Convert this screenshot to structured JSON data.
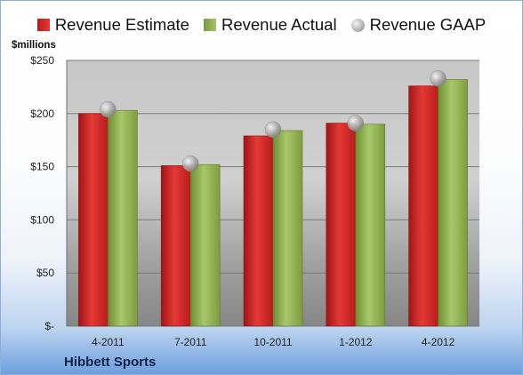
{
  "chart_data": {
    "type": "bar",
    "categories": [
      "4-2011",
      "7-2011",
      "10-2011",
      "1-2012",
      "4-2012"
    ],
    "series": [
      {
        "name": "Revenue Estimate",
        "values": [
          200,
          151,
          179,
          191,
          226
        ],
        "color": "#c62828"
      },
      {
        "name": "Revenue Actual",
        "values": [
          203,
          152,
          184,
          190,
          232
        ],
        "color": "#94b356"
      },
      {
        "name": "Revenue GAAP",
        "values": [
          204,
          153,
          185,
          191,
          233
        ],
        "color": "#b0b0b0",
        "marker": "circle"
      }
    ],
    "ylabel": "$millions",
    "ylim": [
      0,
      250
    ],
    "yticks": [
      0,
      50,
      100,
      150,
      200,
      250
    ],
    "yticklabels": [
      "$-",
      "$50",
      "$100",
      "$150",
      "$200",
      "$250"
    ],
    "grid": true,
    "legend": "top"
  },
  "legend": {
    "estimate": "Revenue Estimate",
    "actual": "Revenue Actual",
    "gaap": "Revenue GAAP"
  },
  "unit_label": "$millions",
  "company": "Hibbett Sports"
}
